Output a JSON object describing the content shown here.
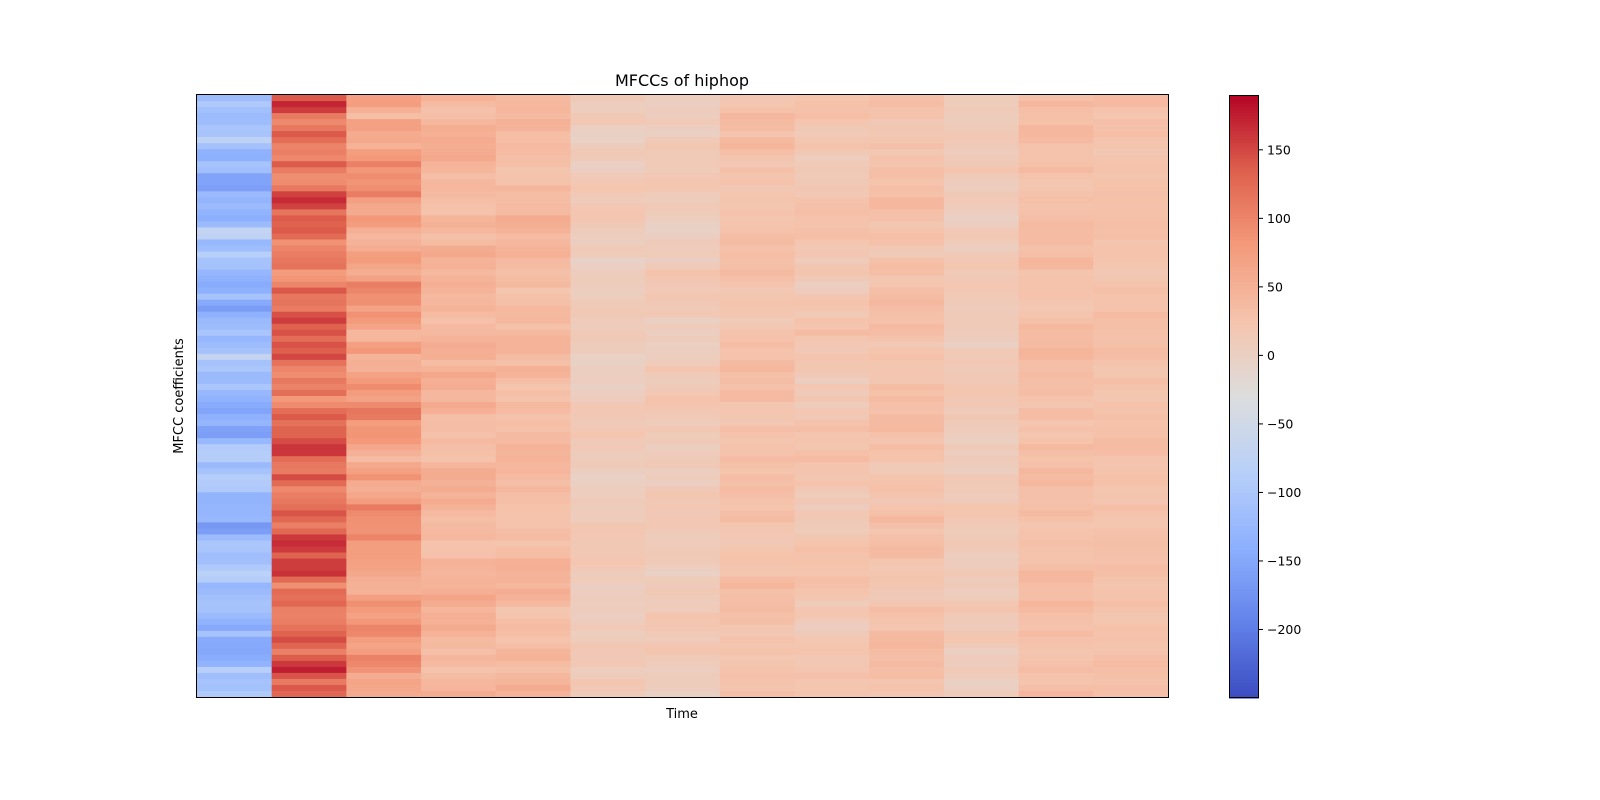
{
  "chart_data": {
    "type": "heatmap",
    "title": "MFCCs of hiphop",
    "xlabel": "Time",
    "ylabel": "MFCC coefficients",
    "colormap": "coolwarm",
    "colorbar": {
      "vmin": -250,
      "vmax": 190,
      "ticks": [
        150,
        100,
        50,
        0,
        -50,
        -100,
        -150,
        -200
      ],
      "tick_labels": [
        "150",
        "100",
        "50",
        "0",
        "−50",
        "−100",
        "−150",
        "−200"
      ]
    },
    "x_ticks_visible": false,
    "y_ticks_visible": false,
    "n_cols": 13,
    "n_rows": 100,
    "column_profile": [
      {
        "base": -120,
        "amp": 45
      },
      {
        "base": 125,
        "amp": 45
      },
      {
        "base": 75,
        "amp": 35
      },
      {
        "base": 45,
        "amp": 22
      },
      {
        "base": 38,
        "amp": 18
      },
      {
        "base": 10,
        "amp": 14
      },
      {
        "base": 12,
        "amp": 14
      },
      {
        "base": 28,
        "amp": 14
      },
      {
        "base": 20,
        "amp": 14
      },
      {
        "base": 28,
        "amp": 14
      },
      {
        "base": 12,
        "amp": 12
      },
      {
        "base": 32,
        "amp": 12
      },
      {
        "base": 28,
        "amp": 10
      }
    ]
  }
}
